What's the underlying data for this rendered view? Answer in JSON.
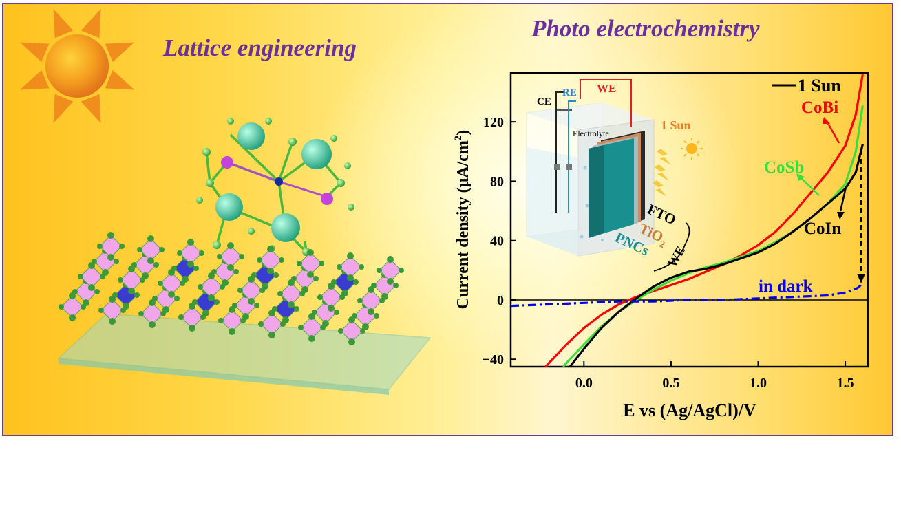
{
  "titles": {
    "left": "Lattice engineering",
    "right": "Photo electrochemistry"
  },
  "colors": {
    "title": "#6b2fa0",
    "border": "#6a3b8f",
    "sun": "#f0891a",
    "one_sun": "#000000",
    "cobi": "#ff0000",
    "cosb": "#3ddc3d",
    "coin": "#000000",
    "dark": "#0000ee"
  },
  "inset": {
    "ce": "CE",
    "re": "RE",
    "we_top": "WE",
    "electrolyte": "Electrolyte",
    "one_sun": "1 Sun",
    "fto": "FTO",
    "tio2_base": "TiO",
    "tio2_sub": "2",
    "pncs": "PNCs",
    "we_side": "WE"
  },
  "chart_data": {
    "type": "line",
    "xlabel": "E vs (Ag/AgCl)/V",
    "ylabel_pre": "Current density (μA/cm",
    "ylabel_sup": "2",
    "ylabel_post": ")",
    "xlim": [
      -0.42,
      1.63
    ],
    "ylim": [
      -45,
      153
    ],
    "x_ticks": [
      "0.0",
      "0.5",
      "1.0",
      "1.5"
    ],
    "x_tick_values": [
      0.0,
      0.5,
      1.0,
      1.5
    ],
    "y_ticks": [
      "−40",
      "0",
      "40",
      "80",
      "120"
    ],
    "y_tick_values": [
      -40,
      0,
      40,
      80,
      120
    ],
    "legend_label": "1 Sun",
    "series_labels": {
      "cobi": "CoBi",
      "cosb": "CoSb",
      "coin": "CoIn",
      "dark": "in dark"
    },
    "series": [
      {
        "name": "CoBi",
        "x": [
          -0.22,
          -0.1,
          0.0,
          0.1,
          0.2,
          0.3,
          0.4,
          0.5,
          0.6,
          0.7,
          0.8,
          0.9,
          1.0,
          1.1,
          1.2,
          1.3,
          1.4,
          1.5,
          1.56,
          1.6
        ],
        "values": [
          -45,
          -30,
          -19,
          -10,
          -3,
          2,
          6,
          10,
          14,
          19,
          24,
          30,
          37,
          46,
          58,
          72,
          86,
          104,
          125,
          152
        ]
      },
      {
        "name": "CoSb",
        "x": [
          -0.12,
          0.0,
          0.1,
          0.2,
          0.3,
          0.4,
          0.5,
          0.6,
          0.7,
          0.8,
          0.9,
          1.0,
          1.1,
          1.2,
          1.3,
          1.4,
          1.5,
          1.56,
          1.6
        ],
        "values": [
          -45,
          -30,
          -18,
          -8,
          0,
          7,
          13,
          18,
          22,
          25,
          29,
          33,
          39,
          46,
          55,
          65,
          78,
          100,
          131
        ]
      },
      {
        "name": "CoIn",
        "x": [
          -0.08,
          0.0,
          0.1,
          0.2,
          0.3,
          0.4,
          0.5,
          0.6,
          0.7,
          0.8,
          0.9,
          1.0,
          1.1,
          1.2,
          1.3,
          1.4,
          1.5,
          1.56,
          1.6
        ],
        "values": [
          -45,
          -33,
          -19,
          -8,
          1,
          9,
          15,
          19,
          21,
          24,
          28,
          32,
          38,
          46,
          55,
          65,
          75,
          86,
          105
        ]
      },
      {
        "name": "in dark",
        "x": [
          -0.42,
          -0.2,
          0.0,
          0.2,
          0.4,
          0.6,
          0.8,
          1.0,
          1.2,
          1.4,
          1.5,
          1.57,
          1.6
        ],
        "values": [
          -4,
          -3,
          -2,
          -1,
          -1,
          0,
          0,
          1,
          2,
          3,
          5,
          8,
          11
        ]
      }
    ]
  }
}
